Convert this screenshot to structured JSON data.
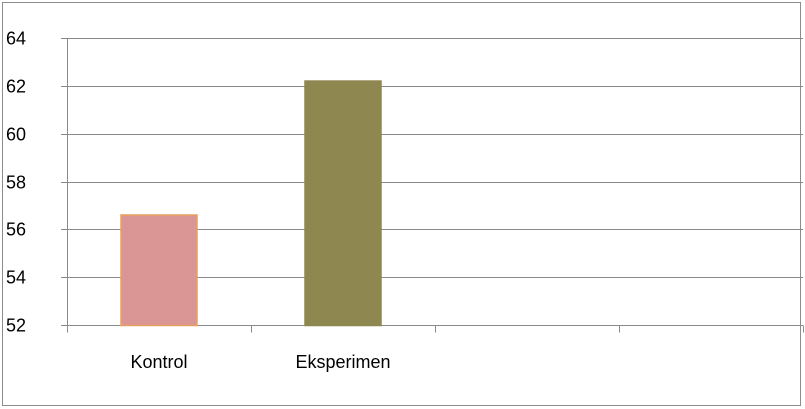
{
  "chart_data": {
    "type": "bar",
    "categories": [
      "Kontrol",
      "Eksperimen",
      "",
      ""
    ],
    "values": [
      56.6,
      62.2,
      null,
      null
    ],
    "bar_colors": [
      "#d99694",
      "#8f8750"
    ],
    "bar_border_colors": [
      "#e8a060",
      "#8f8750"
    ],
    "ylim": [
      52,
      64
    ],
    "yticks": [
      52,
      54,
      56,
      58,
      60,
      62,
      64
    ],
    "grid": true,
    "legend": "none",
    "title": "",
    "xlabel": "",
    "ylabel": ""
  }
}
